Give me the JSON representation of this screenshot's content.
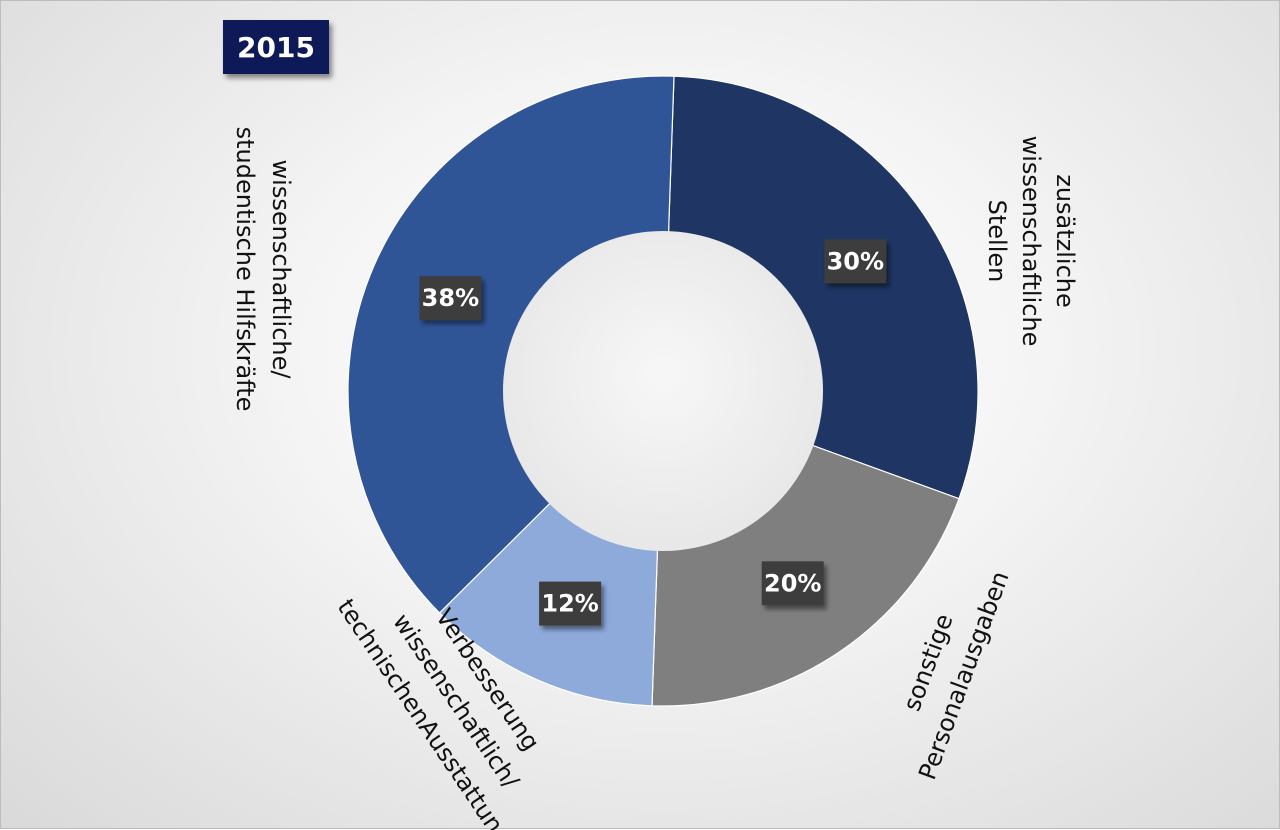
{
  "chart_data": {
    "type": "pie",
    "title": "2015",
    "donut": true,
    "slices": [
      {
        "label": "zusätzliche wissenschaftliche Stellen",
        "label_lines": [
          "zusätzliche",
          "wissenschaftliche",
          "Stellen"
        ],
        "value": 30,
        "display": "30%",
        "color": "#1f3563"
      },
      {
        "label": "sonstige Personalausgaben",
        "label_lines": [
          "sonstige",
          "Personalausgaben"
        ],
        "value": 20,
        "display": "20%",
        "color": "#7f7f7f"
      },
      {
        "label": "Verbesserung wissenschaftlich/ technischenAusstattung",
        "label_lines": [
          "Verbesserung",
          "wissenschaftlich/",
          "technischenAusstattung"
        ],
        "value": 12,
        "display": "12%",
        "color": "#8eaadb"
      },
      {
        "label": "wissenschaftliche/ studentische Hilfskräfte",
        "label_lines": [
          "wissenschaftliche/",
          "studentische Hilfskräfte"
        ],
        "value": 38,
        "display": "38%",
        "color": "#2f5597"
      }
    ]
  }
}
